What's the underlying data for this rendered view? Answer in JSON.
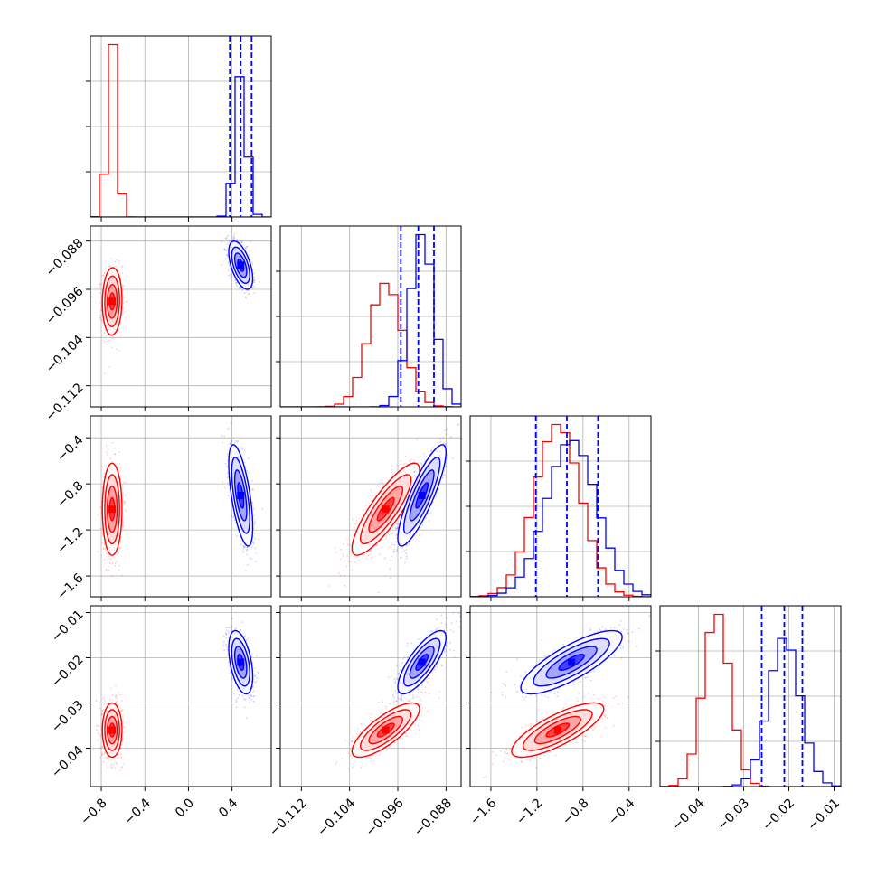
{
  "chart_data": {
    "type": "corner",
    "title": "",
    "parameters": [
      "",
      "",
      "",
      ""
    ],
    "series": [
      {
        "name": "",
        "color": "#ff0000",
        "mean": [
          -0.7,
          -0.098,
          -1.02,
          -0.036
        ],
        "std": [
          0.045,
          0.0028,
          0.2,
          0.003
        ]
      },
      {
        "name": "",
        "color": "#0000ff",
        "mean": [
          0.48,
          -0.092,
          -0.9,
          -0.021
        ],
        "std": [
          0.055,
          0.002,
          0.22,
          0.0035
        ]
      }
    ],
    "quantile_lines": {
      "color": "#0000ff",
      "values": [
        [
          0.38,
          0.48,
          0.58
        ],
        [
          -0.0955,
          -0.0926,
          -0.09
        ],
        [
          -1.21,
          -0.94,
          -0.67
        ],
        [
          -0.026,
          -0.021,
          -0.017
        ]
      ]
    },
    "axes": {
      "ranges": [
        [
          -0.9,
          0.76
        ],
        [
          -0.1155,
          -0.0855
        ],
        [
          -1.78,
          -0.21
        ],
        [
          -0.0485,
          -0.0085
        ]
      ],
      "ticks": [
        [
          -0.8,
          -0.4,
          0.0,
          0.4
        ],
        [
          -0.112,
          -0.104,
          -0.096,
          -0.088
        ],
        [
          -1.6,
          -1.2,
          -0.8,
          -0.4
        ],
        [
          -0.04,
          -0.03,
          -0.02,
          -0.01
        ]
      ],
      "tick_labels": [
        [
          "−0.8",
          "−0.4",
          "0.0",
          "0.4"
        ],
        [
          "−0.112",
          "−0.104",
          "−0.096",
          "−0.088"
        ],
        [
          "−1.6",
          "−1.2",
          "−0.8",
          "−0.4"
        ],
        [
          "−0.04",
          "−0.03",
          "−0.02",
          "−0.01"
        ]
      ]
    },
    "correlations": {
      "0-1": 0.05,
      "0-2": 0.0,
      "0-3": 0.0,
      "1-2": 0.85,
      "1-3": 0.78,
      "2-3": 0.78
    },
    "correlations_blue": {
      "0-1": -0.55,
      "0-2": -0.62,
      "0-3": -0.45,
      "1-2": 0.85,
      "1-3": 0.78,
      "2-3": 0.8
    },
    "histogram_bins": 20,
    "grid": true,
    "legend": "none"
  }
}
